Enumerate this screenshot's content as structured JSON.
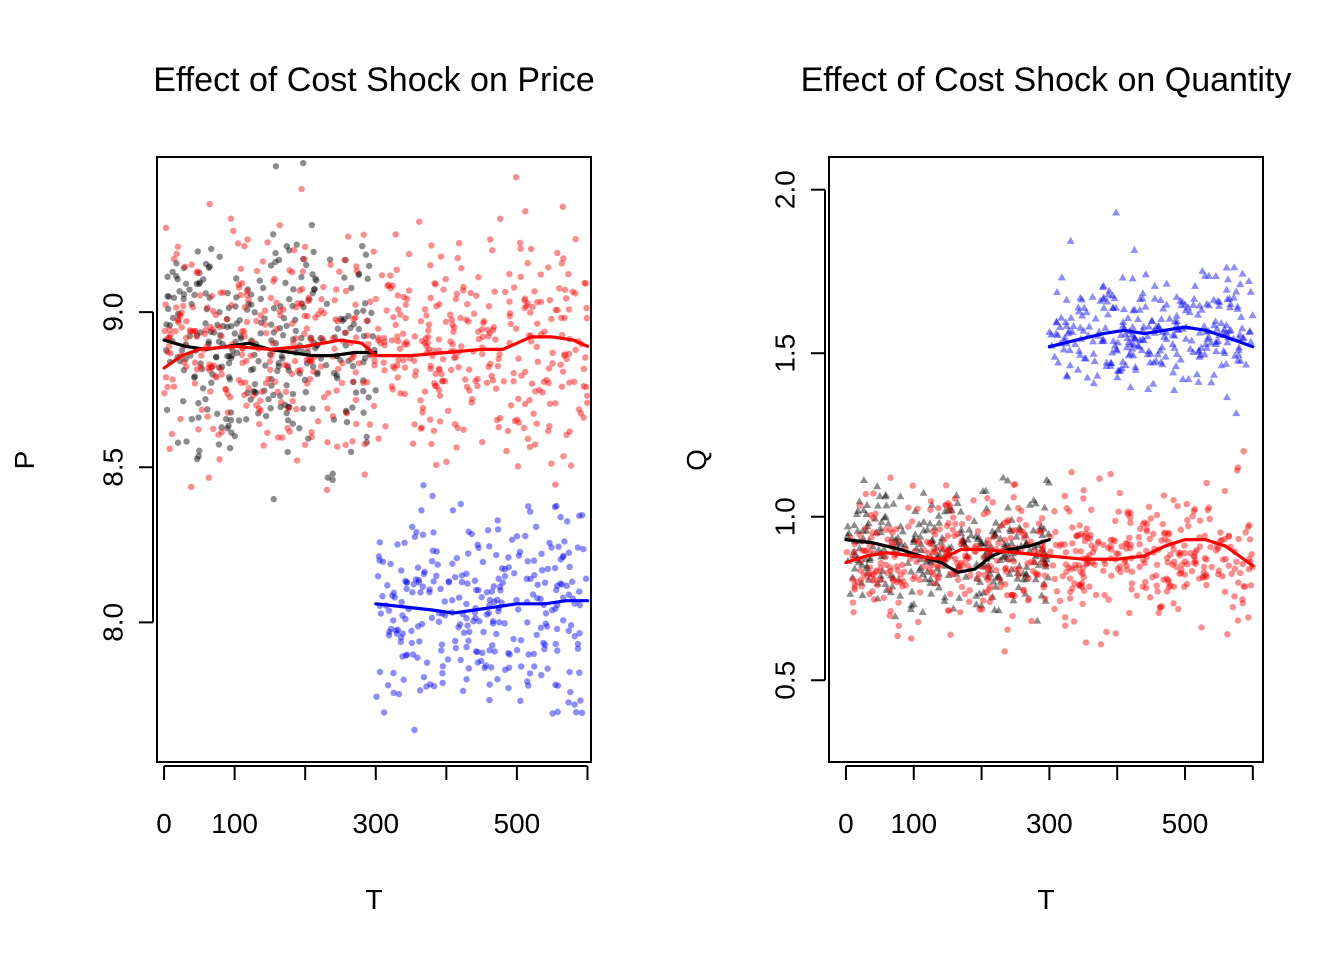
{
  "chart_data": [
    {
      "type": "scatter",
      "title": "Effect of Cost Shock on Price",
      "xlabel": "T",
      "ylabel": "P",
      "xlim": [
        -10,
        605
      ],
      "ylim": [
        7.55,
        9.5
      ],
      "xticks": [
        0,
        100,
        200,
        300,
        400,
        500,
        600
      ],
      "xtick_labels": [
        "0",
        "100",
        "",
        "300",
        "",
        "500",
        ""
      ],
      "yticks": [
        8.0,
        8.5,
        9.0
      ],
      "ytick_labels": [
        "8.0",
        "8.5",
        "9.0"
      ],
      "grid": false,
      "legend": "none",
      "marker": "circle",
      "series": [
        {
          "color": "#000000",
          "x_range": [
            0,
            300
          ],
          "n_points": 300,
          "center": 8.9,
          "spread": 0.38,
          "smooth": {
            "x": [
              0,
              30,
              60,
              90,
              120,
              150,
              180,
              210,
              240,
              270,
              300
            ],
            "y": [
              8.91,
              8.89,
              8.88,
              8.89,
              8.9,
              8.88,
              8.87,
              8.86,
              8.86,
              8.87,
              8.87
            ]
          }
        },
        {
          "color": "#ff0000",
          "x_range": [
            0,
            600
          ],
          "n_points": 600,
          "center": 8.9,
          "spread": 0.4,
          "smooth": {
            "x": [
              0,
              25,
              50,
              100,
              150,
              200,
              250,
              280,
              300,
              350,
              400,
              450,
              480,
              500,
              520,
              550,
              580,
              600
            ],
            "y": [
              8.82,
              8.86,
              8.88,
              8.89,
              8.88,
              8.89,
              8.91,
              8.9,
              8.86,
              8.86,
              8.87,
              8.88,
              8.88,
              8.9,
              8.92,
              8.92,
              8.91,
              8.89
            ]
          }
        },
        {
          "color": "#0000ff",
          "x_range": [
            300,
            600
          ],
          "n_points": 300,
          "center": 8.05,
          "spread": 0.38,
          "smooth": {
            "x": [
              300,
              340,
              380,
              410,
              440,
              470,
              500,
              540,
              570,
              600
            ],
            "y": [
              8.06,
              8.05,
              8.04,
              8.03,
              8.04,
              8.05,
              8.06,
              8.06,
              8.07,
              8.07
            ]
          }
        }
      ]
    },
    {
      "type": "scatter",
      "title": "Effect of Cost Shock on Quantity",
      "xlabel": "T",
      "ylabel": "Q",
      "xlim": [
        -25,
        615
      ],
      "ylim": [
        0.25,
        2.1
      ],
      "xticks": [
        0,
        100,
        200,
        300,
        400,
        500,
        600
      ],
      "xtick_labels": [
        "0",
        "100",
        "",
        "300",
        "",
        "500",
        ""
      ],
      "yticks": [
        0.5,
        1.0,
        1.5,
        2.0
      ],
      "ytick_labels": [
        "0.5",
        "1.0",
        "1.5",
        "2.0"
      ],
      "grid": false,
      "legend": "none",
      "series": [
        {
          "color": "#000000",
          "marker": "triangle",
          "x_range": [
            0,
            300
          ],
          "n_points": 300,
          "center": 0.9,
          "spread": 0.2,
          "smooth": {
            "x": [
              0,
              40,
              80,
              110,
              140,
              165,
              190,
              215,
              240,
              270,
              300
            ],
            "y": [
              0.93,
              0.92,
              0.9,
              0.88,
              0.86,
              0.83,
              0.84,
              0.88,
              0.9,
              0.91,
              0.93
            ]
          }
        },
        {
          "color": "#ff0000",
          "marker": "circle",
          "x_range": [
            0,
            600
          ],
          "n_points": 600,
          "center": 0.88,
          "spread": 0.2,
          "smooth": {
            "x": [
              0,
              30,
              60,
              100,
              140,
              170,
              200,
              250,
              300,
              350,
              400,
              440,
              470,
              500,
              530,
              560,
              580,
              600
            ],
            "y": [
              0.86,
              0.88,
              0.89,
              0.88,
              0.87,
              0.9,
              0.9,
              0.89,
              0.88,
              0.87,
              0.87,
              0.88,
              0.91,
              0.93,
              0.93,
              0.91,
              0.88,
              0.85
            ]
          }
        },
        {
          "color": "#0000ff",
          "marker": "triangle",
          "x_range": [
            300,
            600
          ],
          "n_points": 300,
          "center": 1.57,
          "spread": 0.2,
          "smooth": {
            "x": [
              300,
              340,
              380,
              410,
              440,
              470,
              500,
              530,
              560,
              600
            ],
            "y": [
              1.52,
              1.54,
              1.56,
              1.57,
              1.56,
              1.57,
              1.58,
              1.57,
              1.55,
              1.52
            ]
          }
        }
      ]
    }
  ]
}
